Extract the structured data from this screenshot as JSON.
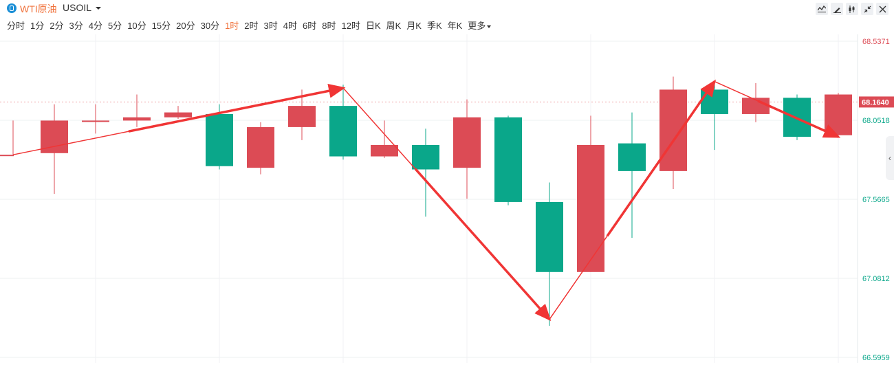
{
  "header": {
    "symbol_name": "WTI原油",
    "symbol_code": "USOIL",
    "tools": [
      "line-chart-icon",
      "draw-pen-icon",
      "candlestick-settings-icon",
      "collapse-icon",
      "close-icon"
    ]
  },
  "periods": [
    {
      "label": "分时",
      "active": false
    },
    {
      "label": "1分",
      "active": false
    },
    {
      "label": "2分",
      "active": false
    },
    {
      "label": "3分",
      "active": false
    },
    {
      "label": "4分",
      "active": false
    },
    {
      "label": "5分",
      "active": false
    },
    {
      "label": "10分",
      "active": false
    },
    {
      "label": "15分",
      "active": false
    },
    {
      "label": "20分",
      "active": false
    },
    {
      "label": "30分",
      "active": false
    },
    {
      "label": "1时",
      "active": true
    },
    {
      "label": "2时",
      "active": false
    },
    {
      "label": "3时",
      "active": false
    },
    {
      "label": "4时",
      "active": false
    },
    {
      "label": "6时",
      "active": false
    },
    {
      "label": "8时",
      "active": false
    },
    {
      "label": "12时",
      "active": false
    },
    {
      "label": "日K",
      "active": false
    },
    {
      "label": "周K",
      "active": false
    },
    {
      "label": "月K",
      "active": false
    },
    {
      "label": "季K",
      "active": false
    },
    {
      "label": "年K",
      "active": false
    }
  ],
  "more_label": "更多",
  "colors": {
    "up": "#dc4b55",
    "down": "#0aa78a",
    "arrow": "#f03535",
    "current_bg": "#dc4b55"
  },
  "chart_data": {
    "type": "candlestick",
    "y_ticks": [
      {
        "value": 68.5371,
        "label": "68.5371",
        "color": "#dc4b55"
      },
      {
        "value": 68.0518,
        "label": "68.0518",
        "color": "#0aa78a"
      },
      {
        "value": 67.5665,
        "label": "67.5665",
        "color": "#0aa78a"
      },
      {
        "value": 67.0812,
        "label": "67.0812",
        "color": "#0aa78a"
      },
      {
        "value": 66.5959,
        "label": "66.5959",
        "color": "#0aa78a"
      }
    ],
    "current_price": 68.164,
    "current_label": "68.1640",
    "ylim": [
      66.5959,
      68.5371
    ],
    "candles": [
      {
        "o": 67.84,
        "c": 67.84,
        "h": 68.05,
        "l": 67.84
      },
      {
        "o": 67.85,
        "c": 68.05,
        "h": 68.15,
        "l": 67.6
      },
      {
        "o": 68.05,
        "c": 68.05,
        "h": 68.15,
        "l": 67.97
      },
      {
        "o": 68.05,
        "c": 68.07,
        "h": 68.21,
        "l": 68.01
      },
      {
        "o": 68.07,
        "c": 68.1,
        "h": 68.14,
        "l": 68.06
      },
      {
        "o": 68.09,
        "c": 67.77,
        "h": 68.15,
        "l": 67.75
      },
      {
        "o": 67.76,
        "c": 68.01,
        "h": 68.04,
        "l": 67.72
      },
      {
        "o": 68.01,
        "c": 68.14,
        "h": 68.24,
        "l": 67.93
      },
      {
        "o": 68.14,
        "c": 67.83,
        "h": 68.27,
        "l": 67.81
      },
      {
        "o": 67.83,
        "c": 67.9,
        "h": 68.05,
        "l": 67.82
      },
      {
        "o": 67.9,
        "c": 67.75,
        "h": 68.0,
        "l": 67.46
      },
      {
        "o": 67.76,
        "c": 68.07,
        "h": 68.18,
        "l": 67.57
      },
      {
        "o": 68.07,
        "c": 67.55,
        "h": 68.08,
        "l": 67.53
      },
      {
        "o": 67.55,
        "c": 67.12,
        "h": 67.67,
        "l": 66.79
      },
      {
        "o": 67.12,
        "c": 67.9,
        "h": 68.08,
        "l": 67.12
      },
      {
        "o": 67.91,
        "c": 67.74,
        "h": 68.1,
        "l": 67.33
      },
      {
        "o": 67.74,
        "c": 68.24,
        "h": 68.32,
        "l": 67.63
      },
      {
        "o": 68.24,
        "c": 68.09,
        "h": 68.29,
        "l": 67.87
      },
      {
        "o": 68.09,
        "c": 68.19,
        "h": 68.28,
        "l": 68.04
      },
      {
        "o": 68.19,
        "c": 67.95,
        "h": 68.21,
        "l": 67.93
      },
      {
        "o": 67.96,
        "c": 68.21,
        "h": 68.22,
        "l": 67.96
      }
    ],
    "trend_lines": [
      {
        "from_index": 0,
        "from_value": 67.84,
        "to_index": 8,
        "to_value": 68.25
      },
      {
        "from_index": 8,
        "from_value": 68.25,
        "to_index": 13,
        "to_value": 66.83
      },
      {
        "from_index": 13,
        "from_value": 66.83,
        "to_index": 17,
        "to_value": 68.29
      },
      {
        "from_index": 17,
        "from_value": 68.29,
        "to_index": 20,
        "to_value": 67.95
      }
    ]
  }
}
